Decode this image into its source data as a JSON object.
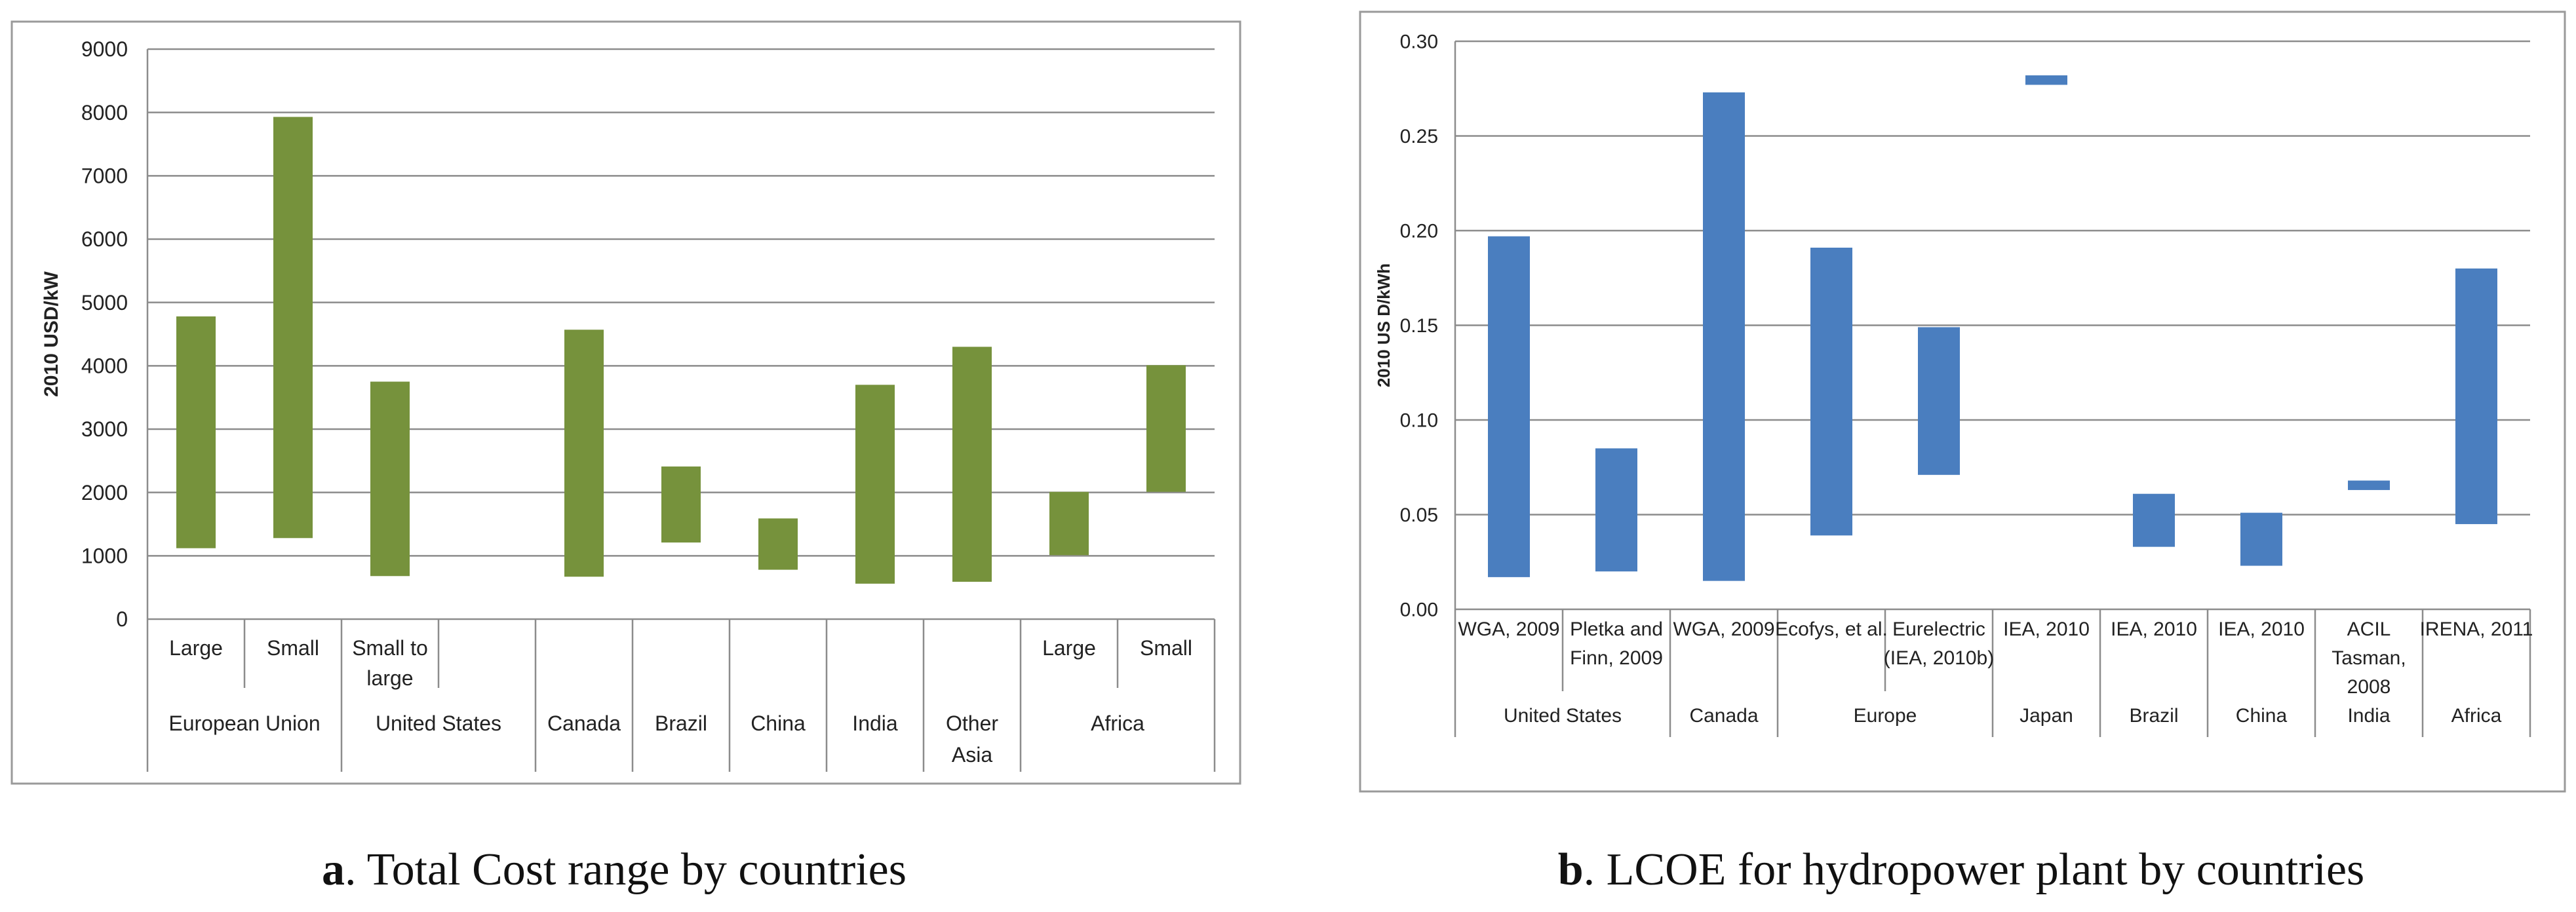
{
  "chart_data": [
    {
      "id": "a",
      "type": "bar",
      "subtype": "floating-range",
      "caption_letter": "a",
      "caption_text": ". Total Cost range by countries",
      "ylabel": "2010 USD/kW",
      "ylim": [
        0,
        9000
      ],
      "yticks": [
        0,
        1000,
        2000,
        3000,
        4000,
        5000,
        6000,
        7000,
        8000,
        9000
      ],
      "grid": true,
      "bar_color": "#76923c",
      "categories": [
        {
          "label": [
            "Large"
          ],
          "group": "European Union",
          "low": 1120,
          "high": 4780
        },
        {
          "label": [
            "Small"
          ],
          "group": "European Union",
          "low": 1280,
          "high": 7930
        },
        {
          "label": [
            "Small to",
            "large"
          ],
          "group": "United States",
          "low": 680,
          "high": 3750
        },
        {
          "label": [],
          "group": "United States",
          "low": null,
          "high": null
        },
        {
          "label": [],
          "group": "Canada",
          "low": 670,
          "high": 4570
        },
        {
          "label": [],
          "group": "Brazil",
          "low": 1210,
          "high": 2410
        },
        {
          "label": [],
          "group": "China",
          "low": 780,
          "high": 1590
        },
        {
          "label": [],
          "group": "India",
          "low": 560,
          "high": 3700
        },
        {
          "label": [],
          "group": "Other Asia",
          "low": 590,
          "high": 4300
        },
        {
          "label": [
            "Large"
          ],
          "group": "Africa",
          "low": 1010,
          "high": 2010
        },
        {
          "label": [
            "Small"
          ],
          "group": "Africa",
          "low": 2010,
          "high": 4010
        }
      ],
      "groups": [
        {
          "label": [
            "European Union"
          ],
          "start": 0,
          "end": 1
        },
        {
          "label": [
            "United States"
          ],
          "start": 2,
          "end": 3
        },
        {
          "label": [
            "Canada"
          ],
          "start": 4,
          "end": 4
        },
        {
          "label": [
            "Brazil"
          ],
          "start": 5,
          "end": 5
        },
        {
          "label": [
            "China"
          ],
          "start": 6,
          "end": 6
        },
        {
          "label": [
            "India"
          ],
          "start": 7,
          "end": 7
        },
        {
          "label": [
            "Other",
            "Asia"
          ],
          "start": 8,
          "end": 8
        },
        {
          "label": [
            "Africa"
          ],
          "start": 9,
          "end": 10
        }
      ]
    },
    {
      "id": "b",
      "type": "bar",
      "subtype": "floating-range",
      "caption_letter": "b",
      "caption_text": ". LCOE for hydropower plant by countries",
      "ylabel": "2010 US D/kWh",
      "ylim": [
        0,
        0.3
      ],
      "yticks": [
        "0.00",
        "0.05",
        "0.10",
        "0.15",
        "0.20",
        "0.25",
        "0.30"
      ],
      "grid": true,
      "bar_color": "#4a7ebf",
      "categories": [
        {
          "label": [
            "WGA, 2009"
          ],
          "group": "United States",
          "low": 0.017,
          "high": 0.197
        },
        {
          "label": [
            "Pletka and",
            "Finn, 2009"
          ],
          "group": "United States",
          "low": 0.02,
          "high": 0.085
        },
        {
          "label": [
            "WGA, 2009"
          ],
          "group": "Canada",
          "low": 0.015,
          "high": 0.273
        },
        {
          "label": [
            "Ecofys, et al."
          ],
          "group": "Europe",
          "low": 0.039,
          "high": 0.191
        },
        {
          "label": [
            "Eurelectric",
            "(IEA, 2010b)"
          ],
          "group": "Europe",
          "low": 0.071,
          "high": 0.149
        },
        {
          "label": [
            "IEA, 2010"
          ],
          "group": "Japan",
          "low": 0.277,
          "high": 0.282
        },
        {
          "label": [
            "IEA, 2010"
          ],
          "group": "Brazil",
          "low": 0.033,
          "high": 0.061
        },
        {
          "label": [
            "IEA, 2010"
          ],
          "group": "China",
          "low": 0.023,
          "high": 0.051
        },
        {
          "label": [
            "ACIL",
            "Tasman,",
            "2008"
          ],
          "group": "India",
          "low": 0.063,
          "high": 0.068
        },
        {
          "label": [
            "IRENA, 2011"
          ],
          "group": "Africa",
          "low": 0.045,
          "high": 0.18
        }
      ],
      "groups": [
        {
          "label": [
            "United States"
          ],
          "start": 0,
          "end": 1
        },
        {
          "label": [
            "Canada"
          ],
          "start": 2,
          "end": 2
        },
        {
          "label": [
            "Europe"
          ],
          "start": 3,
          "end": 4
        },
        {
          "label": [
            "Japan"
          ],
          "start": 5,
          "end": 5
        },
        {
          "label": [
            "Brazil"
          ],
          "start": 6,
          "end": 6
        },
        {
          "label": [
            "China"
          ],
          "start": 7,
          "end": 7
        },
        {
          "label": [
            "India"
          ],
          "start": 8,
          "end": 8
        },
        {
          "label": [
            "Africa"
          ],
          "start": 9,
          "end": 9
        }
      ]
    }
  ]
}
